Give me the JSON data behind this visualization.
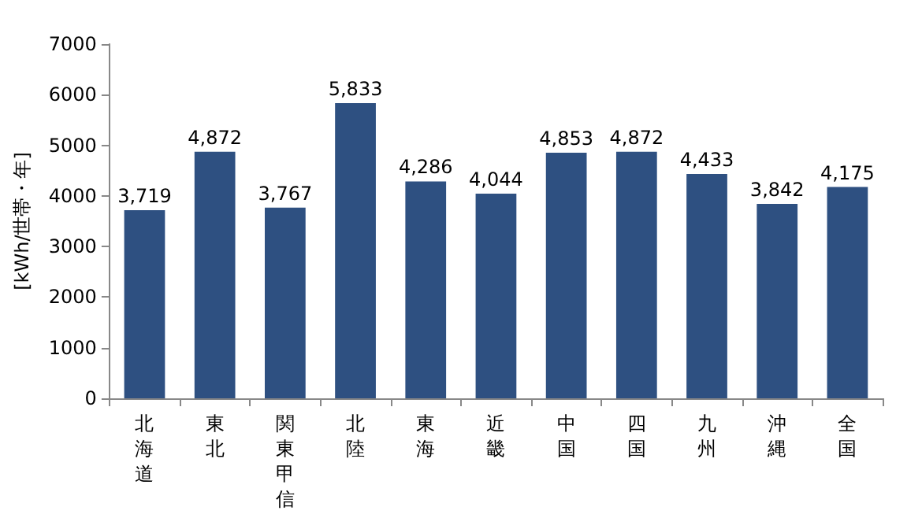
{
  "chart_data": {
    "type": "bar",
    "ylabel": "[kWh/世帯・年]",
    "categories": [
      "北海道",
      "東北",
      "関東甲信",
      "北陸",
      "東海",
      "近畿",
      "中国",
      "四国",
      "九州",
      "沖縄",
      "全国"
    ],
    "values": [
      3719,
      4872,
      3767,
      5833,
      4286,
      4044,
      4853,
      4872,
      4433,
      3842,
      4175
    ],
    "value_labels": [
      "3,719",
      "4,872",
      "3,767",
      "5,833",
      "4,286",
      "4,044",
      "4,853",
      "4,872",
      "4,433",
      "3,842",
      "4,175"
    ],
    "color": "#2e5081",
    "ylim": [
      0,
      7000
    ],
    "yticks": [
      0,
      1000,
      2000,
      3000,
      4000,
      5000,
      6000,
      7000
    ],
    "grid": false
  }
}
